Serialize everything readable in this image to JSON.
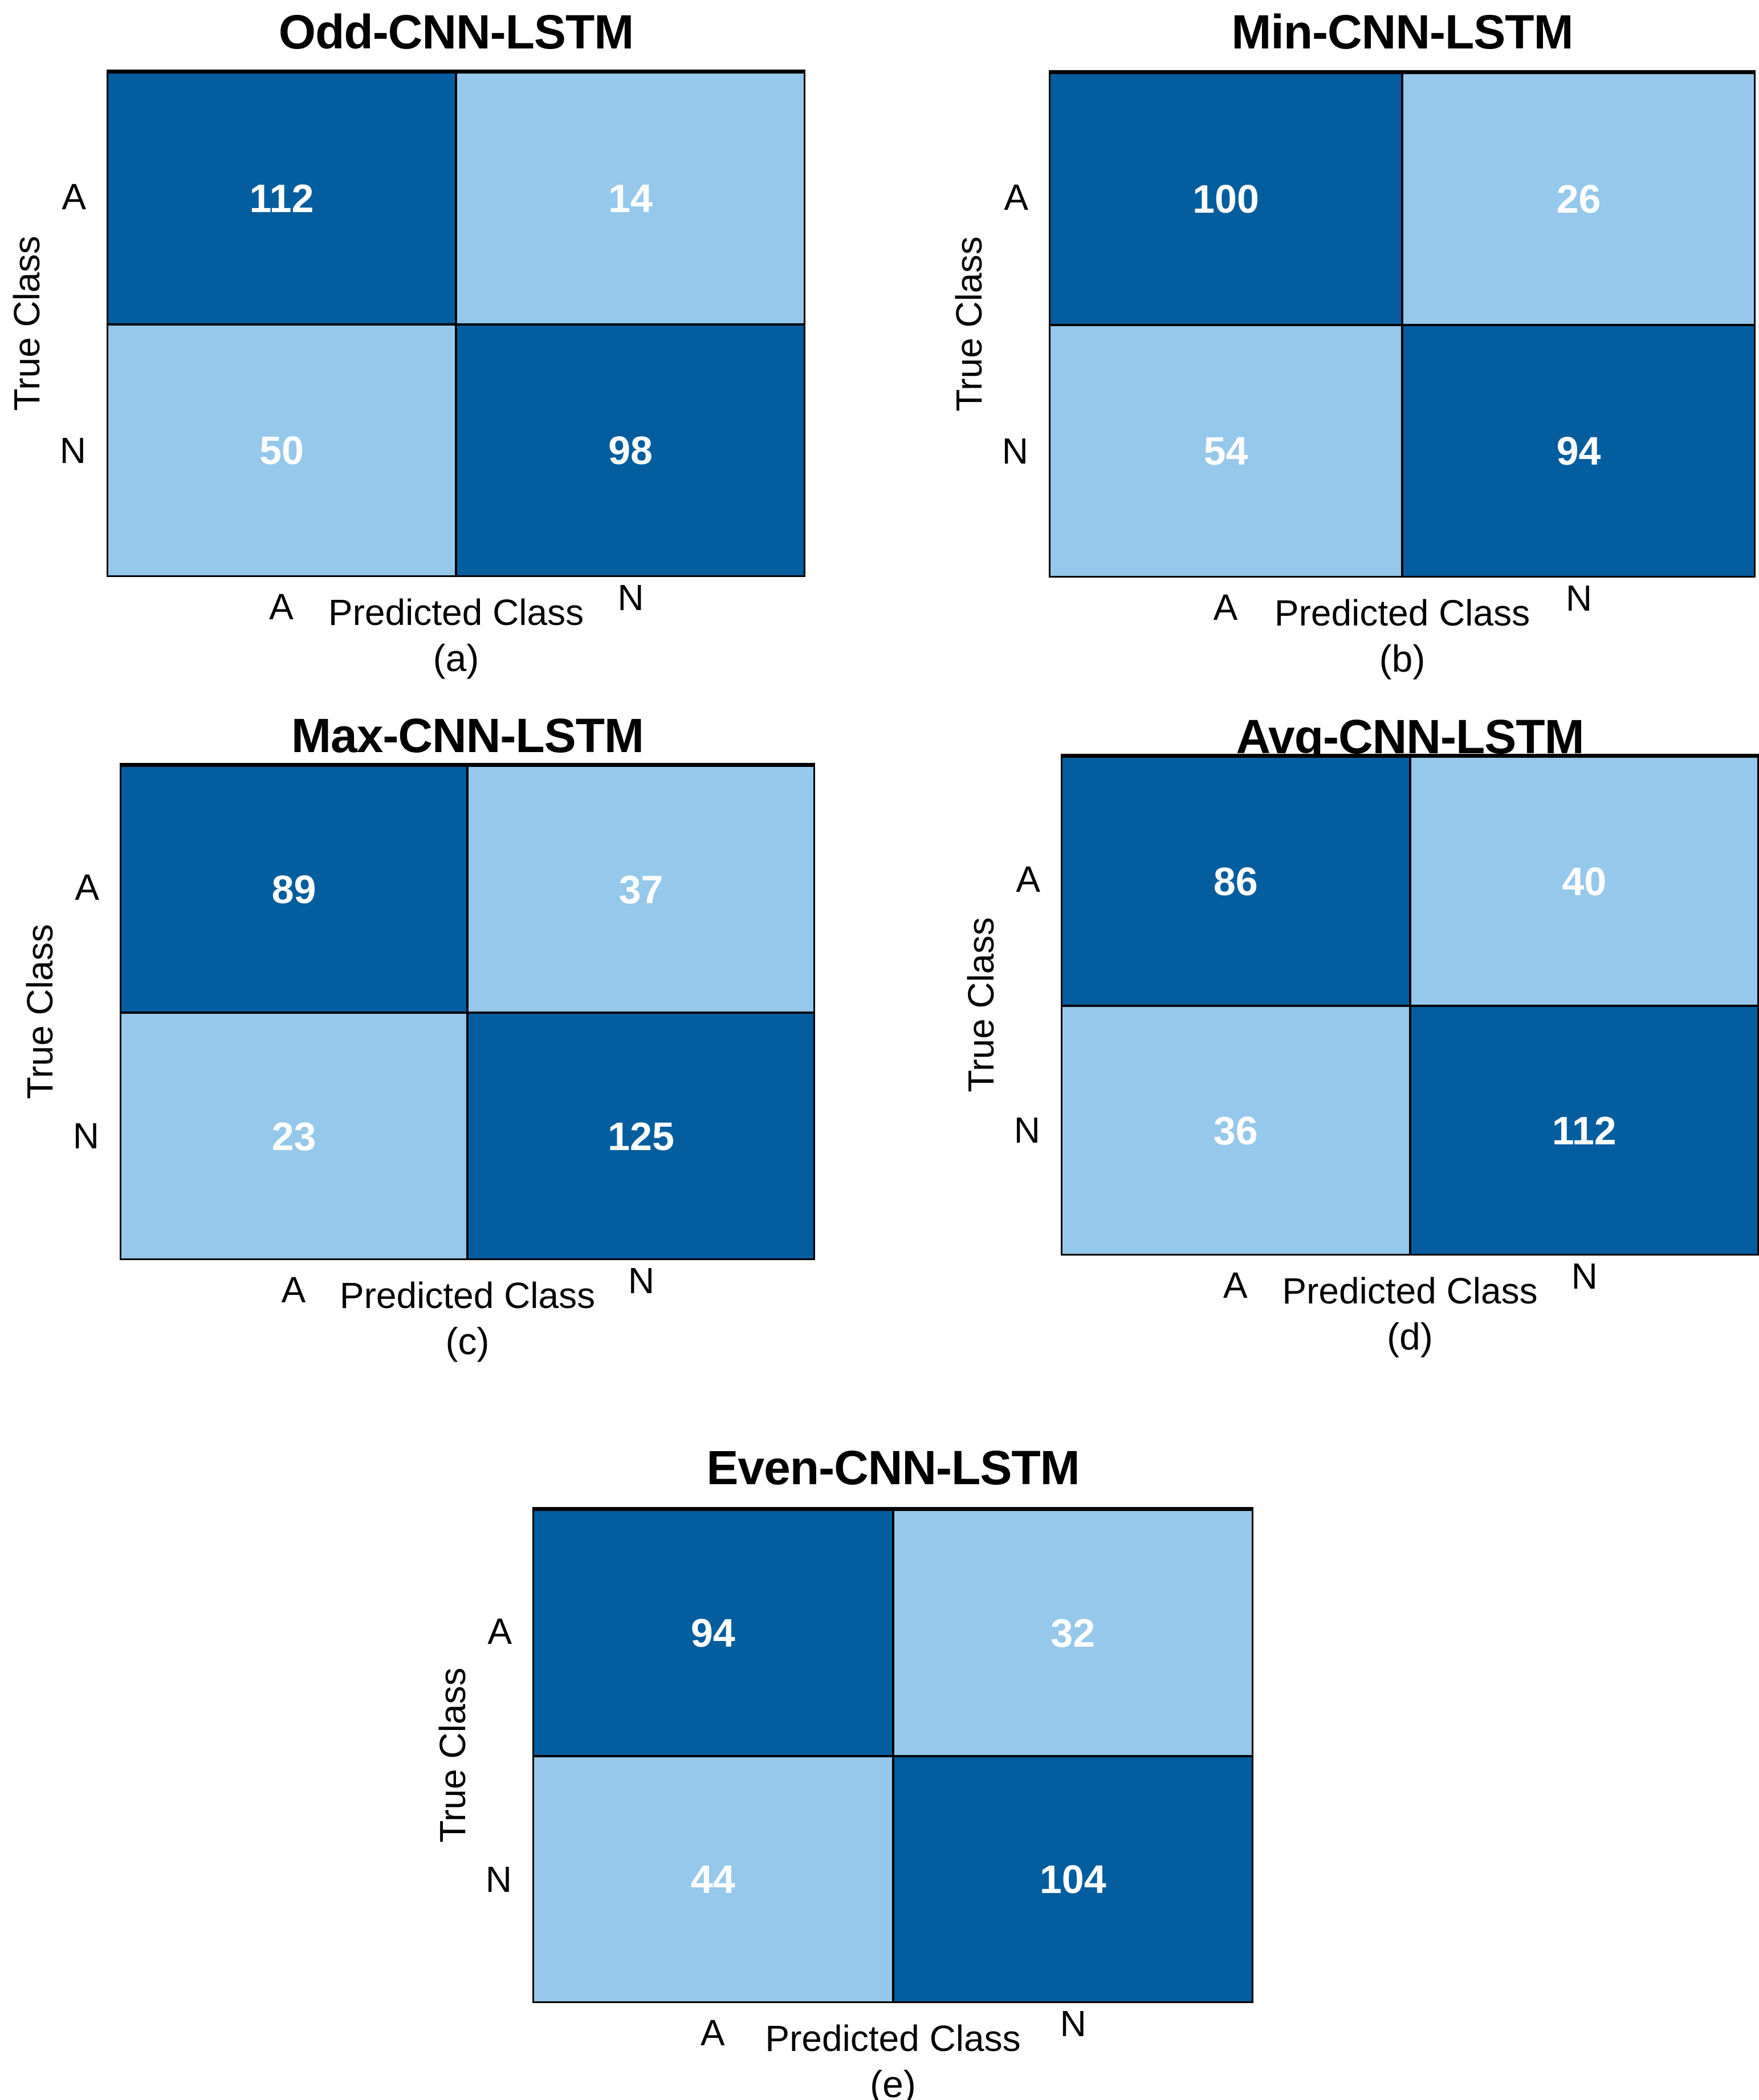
{
  "figure": {
    "type": "confusion-matrix-grid",
    "background": "#ffffff",
    "colors": {
      "diagonal_cell": "#045d9e",
      "off_diagonal_cell": "#95c8eb",
      "cell_text": "#ffffff",
      "border": "#000000",
      "label_text": "#000000"
    }
  },
  "chart_data": [
    {
      "type": "heatmap",
      "title": "Odd-CNN-LSTM",
      "caption": "(a)",
      "xlabel": "Predicted Class",
      "ylabel": "True Class",
      "x_categories": [
        "A",
        "N"
      ],
      "y_categories": [
        "A",
        "N"
      ],
      "values": [
        [
          112,
          14
        ],
        [
          50,
          98
        ]
      ]
    },
    {
      "type": "heatmap",
      "title": "Min-CNN-LSTM",
      "caption": "(b)",
      "xlabel": "Predicted Class",
      "ylabel": "True Class",
      "x_categories": [
        "A",
        "N"
      ],
      "y_categories": [
        "A",
        "N"
      ],
      "values": [
        [
          100,
          26
        ],
        [
          54,
          94
        ]
      ]
    },
    {
      "type": "heatmap",
      "title": "Max-CNN-LSTM",
      "caption": "(c)",
      "xlabel": "Predicted Class",
      "ylabel": "True Class",
      "x_categories": [
        "A",
        "N"
      ],
      "y_categories": [
        "A",
        "N"
      ],
      "values": [
        [
          89,
          37
        ],
        [
          23,
          125
        ]
      ]
    },
    {
      "type": "heatmap",
      "title": "Avg-CNN-LSTM",
      "caption": "(d)",
      "xlabel": "Predicted Class",
      "ylabel": "True Class",
      "x_categories": [
        "A",
        "N"
      ],
      "y_categories": [
        "A",
        "N"
      ],
      "values": [
        [
          86,
          40
        ],
        [
          36,
          112
        ]
      ]
    },
    {
      "type": "heatmap",
      "title": "Even-CNN-LSTM",
      "caption": "(e)",
      "xlabel": "Predicted Class",
      "ylabel": "True Class",
      "x_categories": [
        "A",
        "N"
      ],
      "y_categories": [
        "A",
        "N"
      ],
      "values": [
        [
          94,
          32
        ],
        [
          44,
          104
        ]
      ]
    }
  ]
}
